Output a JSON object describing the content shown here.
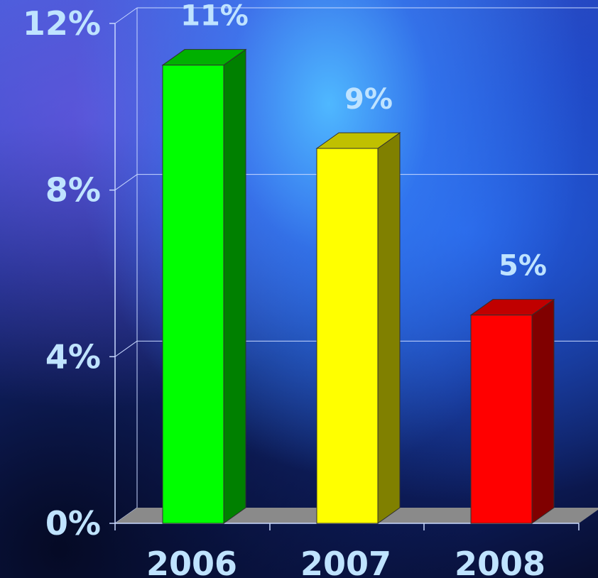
{
  "chart_data": {
    "type": "bar",
    "categories": [
      "2006",
      "2007",
      "2008"
    ],
    "values": [
      11,
      9,
      5
    ],
    "data_labels": [
      "11%",
      "9%",
      "5%"
    ],
    "ylim": [
      0,
      12
    ],
    "yticks": [
      {
        "value": 0,
        "label": "0%"
      },
      {
        "value": 4,
        "label": "4%"
      },
      {
        "value": 8,
        "label": "8%"
      },
      {
        "value": 12,
        "label": "12%"
      }
    ],
    "grid": true,
    "style": "3d",
    "colors": {
      "bars": [
        {
          "front": "#00ff00",
          "side": "#008000",
          "top": "#00b000"
        },
        {
          "front": "#ffff00",
          "side": "#808000",
          "top": "#c0c000"
        },
        {
          "front": "#ff0000",
          "side": "#800000",
          "top": "#c00000"
        }
      ],
      "floor": "#8a8a8a",
      "grid": "#c8d8ff",
      "text": "#bfe3ff"
    }
  }
}
